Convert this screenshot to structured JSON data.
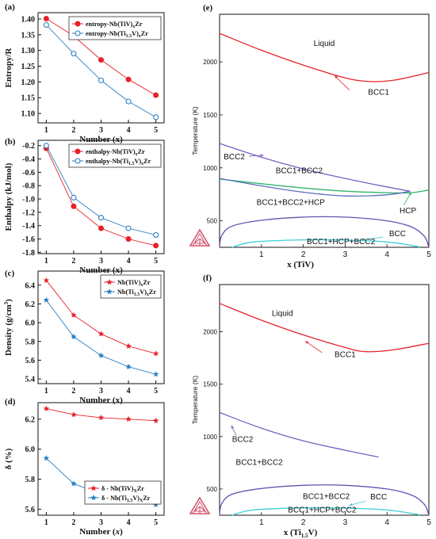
{
  "chart_data": [
    {
      "panel_label": "(a)",
      "type": "line",
      "x": [
        1,
        2,
        3,
        4,
        5
      ],
      "xlabel": "Number (x)",
      "ylabel": "Entropy/R",
      "xlim": [
        0.7,
        5.3
      ],
      "ylim": [
        1.07,
        1.42
      ],
      "yticks": [
        "1.10",
        "1.15",
        "1.20",
        "1.25",
        "1.30",
        "1.35",
        "1.40"
      ],
      "xticks": [
        "1",
        "2",
        "3",
        "4",
        "5"
      ],
      "legend": "top-right",
      "series": [
        {
          "name": "entropy-Nb(TiV)",
          "legend_sub": "x",
          "legend_tail": "Zr",
          "marker": "filled-circle",
          "color": "#e8212a",
          "values": [
            1.401,
            1.346,
            1.27,
            1.208,
            1.158
          ]
        },
        {
          "name": "entropy-Nb(Ti",
          "legend_sub": "1.5",
          "legend_mid": "V)",
          "legend_sub2": "x",
          "legend_tail": "Zr",
          "marker": "open-circle",
          "color": "#2b7fc0",
          "values": [
            1.381,
            1.29,
            1.205,
            1.138,
            1.088
          ]
        }
      ]
    },
    {
      "panel_label": "(b)",
      "type": "line",
      "x": [
        1,
        2,
        3,
        4,
        5
      ],
      "xlabel": "Number (x)",
      "ylabel": "Enthalpy (kJ/mol)",
      "xlim": [
        0.7,
        5.3
      ],
      "ylim": [
        -1.82,
        -0.12
      ],
      "yticks": [
        "-0.2",
        "-0.4",
        "-0.6",
        "-0.8",
        "-1.0",
        "-1.2",
        "-1.4",
        "-1.6",
        "-1.8"
      ],
      "xticks": [
        "1",
        "2",
        "3",
        "4",
        "5"
      ],
      "legend": "top-right",
      "series": [
        {
          "name": "enthalpy-Nb(TiV)",
          "legend_sub": "x",
          "legend_tail": "Zr",
          "marker": "filled-circle",
          "color": "#e8212a",
          "values": [
            -0.24,
            -1.11,
            -1.44,
            -1.6,
            -1.7
          ]
        },
        {
          "name": "enthalpy-Nb(Ti",
          "legend_sub": "1.5",
          "legend_mid": "V)",
          "legend_sub2": "x",
          "legend_tail": "Zr",
          "marker": "open-circle",
          "color": "#2b7fc0",
          "values": [
            -0.2,
            -0.98,
            -1.28,
            -1.44,
            -1.54
          ]
        }
      ]
    },
    {
      "panel_label": "(c)",
      "type": "line",
      "x": [
        1,
        2,
        3,
        4,
        5
      ],
      "xlabel": "Number (x)",
      "ylabel": "Density (g/cm",
      "ylabel_sup": "3",
      "ylabel_tail": ")",
      "xlim": [
        0.7,
        5.3
      ],
      "ylim": [
        5.35,
        6.55
      ],
      "yticks": [
        "5.4",
        "5.6",
        "5.8",
        "6.0",
        "6.2",
        "6.4"
      ],
      "xticks": [
        "1",
        "2",
        "3",
        "4",
        "5"
      ],
      "legend": "top-right",
      "series": [
        {
          "name": "Nb(TiV)",
          "legend_sub": "x",
          "legend_tail": "Zr",
          "marker": "filled-star",
          "color": "#e8212a",
          "values": [
            6.45,
            6.08,
            5.88,
            5.75,
            5.67
          ]
        },
        {
          "name": "Nb(Ti",
          "legend_sub": "1.5",
          "legend_mid": "V)",
          "legend_sub2": "x",
          "legend_tail": "Zr",
          "marker": "filled-star",
          "color": "#2b7fc0",
          "values": [
            6.24,
            5.85,
            5.65,
            5.53,
            5.45
          ]
        }
      ]
    },
    {
      "panel_label": "(d)",
      "type": "line",
      "x": [
        1,
        2,
        3,
        4,
        5
      ],
      "xlabel": "Number (",
      "xlabel_italic": "x",
      "xlabel_tail": ")",
      "ylabel": "δ   (%)",
      "xlim": [
        0.7,
        5.3
      ],
      "ylim": [
        5.56,
        6.31
      ],
      "yticks": [
        "5.6",
        "5.8",
        "6.0",
        "6.2"
      ],
      "xticks": [
        "1",
        "2",
        "3",
        "4",
        "5"
      ],
      "legend": "bottom-right",
      "series": [
        {
          "name": "δ - Nb(TiV)",
          "legend_sub": "X",
          "legend_tail": "Zr",
          "marker": "filled-star",
          "color": "#e8212a",
          "values": [
            6.27,
            6.23,
            6.21,
            6.2,
            6.19
          ]
        },
        {
          "name": "δ - Nb(Ti",
          "legend_sub": "1.5",
          "legend_mid": "V)",
          "legend_sub2": "X",
          "legend_tail": "Zr",
          "marker": "filled-star",
          "color": "#2b7fc0",
          "values": [
            5.94,
            5.77,
            5.7,
            5.66,
            5.63
          ]
        }
      ]
    },
    {
      "panel_label": "(e)",
      "type": "line",
      "subtype": "phase-diagram",
      "xlabel": "x (TiV)",
      "ylabel": "Temperature (K)",
      "xlim": [
        0,
        5
      ],
      "ylim": [
        250,
        2450
      ],
      "xticks": [
        "1",
        "2",
        "3",
        "4",
        "5"
      ],
      "yticks": [
        "500",
        "1000",
        "1500",
        "2000"
      ],
      "grid": false,
      "series": [
        {
          "name": "liquidus",
          "color": "#e3242b",
          "points": [
            [
              0,
              2270
            ],
            [
              1,
              2110
            ],
            [
              2,
              1970
            ],
            [
              3,
              1850
            ],
            [
              3.6,
              1815
            ],
            [
              4.2,
              1830
            ],
            [
              5,
              1900
            ]
          ]
        },
        {
          "name": "bcc2-boundary",
          "color": "#7b5ec2",
          "points": [
            [
              0,
              1230
            ],
            [
              1,
              1100
            ],
            [
              2,
              990
            ],
            [
              3,
              900
            ],
            [
              4,
              820
            ],
            [
              4.55,
              780
            ]
          ]
        },
        {
          "name": "hcp-line",
          "color": "#2fb36a",
          "points": [
            [
              0,
              895
            ],
            [
              1,
              850
            ],
            [
              2,
              810
            ],
            [
              3,
              780
            ],
            [
              4,
              765
            ],
            [
              4.55,
              765
            ],
            [
              5,
              790
            ]
          ]
        },
        {
          "name": "bcc1-bcc2-lower",
          "color": "#5a6fc0",
          "points": [
            [
              0,
              900
            ],
            [
              1,
              830
            ],
            [
              2,
              770
            ],
            [
              3,
              735
            ],
            [
              4,
              745
            ],
            [
              4.55,
              780
            ]
          ]
        },
        {
          "name": "miscibility-dome",
          "color": "#6a4fb0",
          "points": [
            [
              0,
              250
            ],
            [
              0.05,
              360
            ],
            [
              0.3,
              450
            ],
            [
              1,
              505
            ],
            [
              2,
              535
            ],
            [
              3,
              535
            ],
            [
              4,
              500
            ],
            [
              4.6,
              440
            ],
            [
              4.9,
              350
            ],
            [
              5,
              250
            ]
          ]
        },
        {
          "name": "hcp-dome",
          "color": "#3ccfd6",
          "points": [
            [
              0.3,
              250
            ],
            [
              0.8,
              300
            ],
            [
              2,
              320
            ],
            [
              3,
              318
            ],
            [
              4,
              300
            ],
            [
              4.7,
              260
            ],
            [
              4.75,
              250
            ]
          ]
        }
      ],
      "annotations": [
        "Liquid",
        "BCC1",
        "BCC2",
        "BCC1+BCC2",
        "HCP",
        "BCC1+BCC2+HCP",
        "BCC",
        "BCC1+HCP+BCC2"
      ]
    },
    {
      "panel_label": "(f)",
      "type": "line",
      "subtype": "phase-diagram",
      "xlabel": "x (Ti",
      "xlabel_sub": "1.5",
      "xlabel_tail": "V)",
      "ylabel": "Temperature (K)",
      "xlim": [
        0,
        5
      ],
      "ylim": [
        250,
        2450
      ],
      "xticks": [
        "1",
        "2",
        "3",
        "4",
        "5"
      ],
      "yticks": [
        "500",
        "1000",
        "1500",
        "2000"
      ],
      "grid": false,
      "series": [
        {
          "name": "liquidus",
          "color": "#e3242b",
          "points": [
            [
              0,
              2270
            ],
            [
              1,
              2110
            ],
            [
              2,
              1970
            ],
            [
              3,
              1850
            ],
            [
              3.5,
              1810
            ],
            [
              4.2,
              1830
            ],
            [
              5,
              1890
            ]
          ]
        },
        {
          "name": "bcc2-boundary",
          "color": "#7b5ec2",
          "points": [
            [
              0,
              1230
            ],
            [
              1,
              1080
            ],
            [
              2,
              960
            ],
            [
              3,
              870
            ],
            [
              3.8,
              805
            ]
          ]
        },
        {
          "name": "miscibility-dome",
          "color": "#6a4fb0",
          "points": [
            [
              0,
              250
            ],
            [
              0.05,
              360
            ],
            [
              0.3,
              450
            ],
            [
              1,
              505
            ],
            [
              2,
              535
            ],
            [
              3,
              535
            ],
            [
              4,
              500
            ],
            [
              4.6,
              440
            ],
            [
              4.9,
              350
            ],
            [
              5,
              250
            ]
          ]
        },
        {
          "name": "hcp-dome",
          "color": "#3ccfd6",
          "points": [
            [
              0.3,
              250
            ],
            [
              0.8,
              300
            ],
            [
              2,
              320
            ],
            [
              3,
              318
            ],
            [
              4,
              300
            ],
            [
              4.7,
              260
            ],
            [
              4.75,
              250
            ]
          ]
        }
      ],
      "annotations": [
        "Liquid",
        "BCC1",
        "BCC2",
        "BCC1+BCC2",
        "BCC1+BCC2",
        "BCC",
        "BCC1+HCP+BCC2"
      ]
    }
  ]
}
